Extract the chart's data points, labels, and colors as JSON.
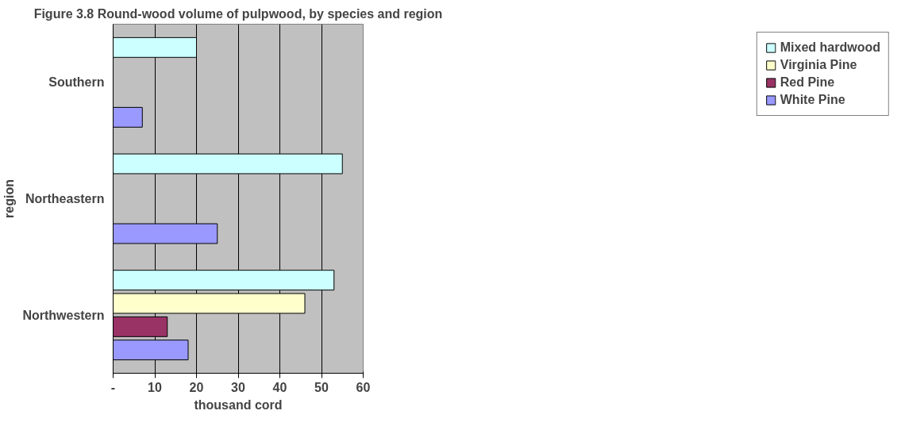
{
  "chart_data": {
    "type": "bar",
    "orientation": "horizontal",
    "title": "Figure 3.8 Round-wood volume of pulpwood, by species and region",
    "xlabel": "thousand cord",
    "ylabel": "region",
    "categories": [
      "Southern",
      "Northeastern",
      "Northwestern"
    ],
    "series": [
      {
        "name": "White Pine",
        "color": "#9999ff",
        "values": [
          7,
          25,
          18
        ]
      },
      {
        "name": "Red Pine",
        "color": "#993366",
        "values": [
          null,
          null,
          13
        ]
      },
      {
        "name": "Virginia Pine",
        "color": "#ffffcc",
        "values": [
          null,
          null,
          46
        ]
      },
      {
        "name": "Mixed hardwood",
        "color": "#ccffff",
        "values": [
          20,
          55,
          53
        ]
      }
    ],
    "xlim": [
      0,
      60
    ],
    "xticks": [
      {
        "value": 0,
        "label": "-"
      },
      10,
      20,
      30,
      40,
      50,
      60
    ],
    "grid": "x",
    "legend": "right"
  }
}
